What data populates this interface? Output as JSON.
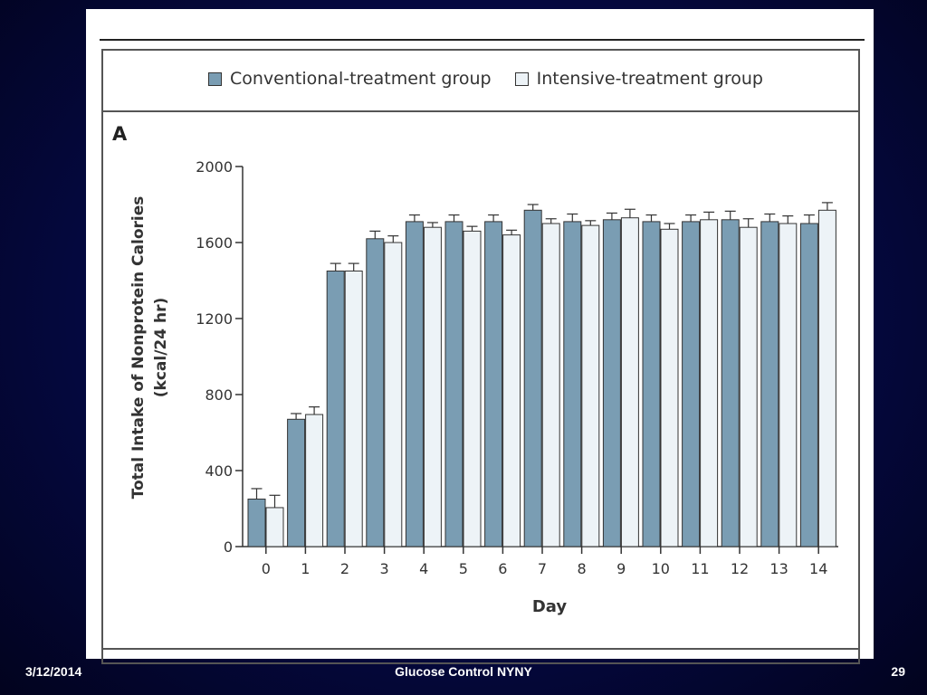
{
  "slide": {
    "footer_date": "3/12/2014",
    "footer_title": "Glucose Control NYNY",
    "page_number": "29"
  },
  "colors": {
    "conventional": "#7a9db3",
    "intensive": "#edf3f7",
    "background": "#050a4a"
  },
  "chart_data": {
    "type": "bar",
    "panel_label": "A",
    "title": "",
    "xlabel": "Day",
    "ylabel": "Total Intake of Nonprotein Calories (kcal/24 hr)",
    "ylabel_lines": [
      "Total Intake of Nonprotein Calories",
      "(kcal/24 hr)"
    ],
    "ylim": [
      0,
      2000
    ],
    "yticks": [
      0,
      400,
      800,
      1200,
      1600,
      2000
    ],
    "legend_position": "top",
    "grid": false,
    "categories": [
      "0",
      "1",
      "2",
      "3",
      "4",
      "5",
      "6",
      "7",
      "8",
      "9",
      "10",
      "11",
      "12",
      "13",
      "14"
    ],
    "series": [
      {
        "name": "Conventional-treatment group",
        "values": [
          250,
          670,
          1450,
          1620,
          1710,
          1710,
          1710,
          1770,
          1710,
          1720,
          1710,
          1710,
          1720,
          1710,
          1700
        ],
        "errors": [
          55,
          30,
          40,
          40,
          35,
          35,
          35,
          30,
          40,
          35,
          35,
          35,
          45,
          40,
          45
        ]
      },
      {
        "name": "Intensive-treatment group",
        "values": [
          205,
          695,
          1450,
          1600,
          1680,
          1660,
          1640,
          1700,
          1690,
          1730,
          1670,
          1720,
          1680,
          1700,
          1770
        ],
        "errors": [
          65,
          40,
          40,
          35,
          25,
          25,
          25,
          25,
          25,
          45,
          30,
          40,
          45,
          40,
          40
        ]
      }
    ]
  }
}
